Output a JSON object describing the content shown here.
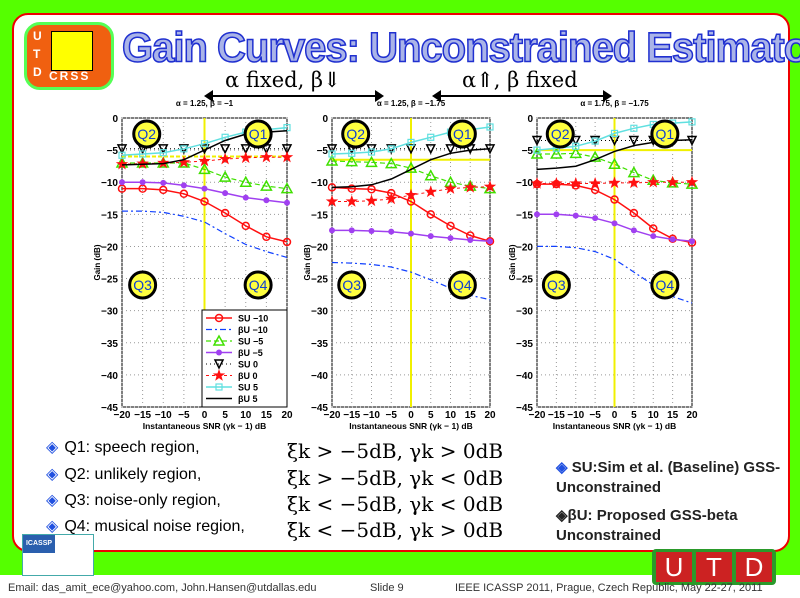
{
  "slide": {
    "title": "Gain Curves: Unconstrained Estimator",
    "logo_text": [
      "U",
      "T",
      "D",
      "CRSS"
    ],
    "header_left": "α fixed, β⇓",
    "header_right": "α⇑, β fixed",
    "bullets": [
      "Q1: speech region,",
      "Q2: unlikely region,",
      "Q3: noise-only region,",
      "Q4: musical noise region,"
    ],
    "equations": [
      "ξk > −5dB, γk > 0dB",
      "ξk > −5dB, γk < 0dB",
      "ξk < −5dB, γk < 0dB",
      "ξk < −5dB, γk > 0dB"
    ],
    "notes": [
      "SU:Sim et al. (Baseline) GSS-Unconstrained",
      "βU: Proposed GSS-beta Unconstrained"
    ],
    "icassp_text": "ICASSP",
    "utd_text": [
      "U",
      "T",
      "D"
    ],
    "footer": {
      "email": "Email: das_amit_ece@yahoo.com, John.Hansen@utdallas.edu",
      "slide": "Slide 9",
      "conf": "IEEE ICASSP 2011, Prague, Czech Republic, May 22-27, 2011"
    }
  },
  "colors": {
    "SU -10": "#ff1010",
    "βU -10": "#1040ff",
    "SU -5": "#40e000",
    "βU -5": "#a040f0",
    "SU 0": "#000000",
    "βU 0": "#ff1010",
    "SU 5": "#60e0e0",
    "βU 5": "#000000",
    "quadrant": "#ffff40",
    "guide": "#f0f000"
  },
  "chart_data": [
    {
      "type": "line",
      "title": "α = 1.25, β = −1",
      "xlabel": "Instantaneous SNR (γk − 1) dB",
      "ylabel": "Gain (dB)",
      "xlim": [
        -20,
        20
      ],
      "ylim": [
        -45,
        0
      ],
      "grid": true,
      "legend": "bottom-right",
      "guide_y": -6,
      "x": [
        -20,
        -15,
        -10,
        -5,
        0,
        5,
        10,
        15,
        20
      ],
      "xticks": [
        -20,
        -15,
        -10,
        -5,
        0,
        5,
        10,
        15,
        20
      ],
      "yticks": [
        0,
        -5,
        -10,
        -15,
        -20,
        -25,
        -30,
        -35,
        -40,
        -45
      ],
      "series": [
        {
          "name": "SU −10",
          "values": [
            -11,
            -11,
            -11.2,
            -11.8,
            -13,
            -14.8,
            -16.8,
            -18.5,
            -19.3
          ]
        },
        {
          "name": "βU −10",
          "values": [
            -14.5,
            -14.5,
            -14.7,
            -15.3,
            -16.2,
            -18,
            -19.7,
            -20.8,
            -21.7
          ]
        },
        {
          "name": "SU −5",
          "values": [
            -7,
            -7,
            -7,
            -7,
            -8,
            -9.2,
            -10,
            -10.6,
            -11
          ]
        },
        {
          "name": "βU −5",
          "values": [
            -10,
            -10,
            -10.1,
            -10.5,
            -11,
            -11.7,
            -12.4,
            -12.8,
            -13.2
          ]
        },
        {
          "name": "SU 0",
          "values": [
            -4.8,
            -4.8,
            -4.8,
            -4.8,
            -4.8,
            -4.8,
            -4.8,
            -4.8,
            -4.8
          ]
        },
        {
          "name": "βU 0",
          "values": [
            -7.2,
            -7.1,
            -7,
            -6.9,
            -6.7,
            -6.4,
            -6.2,
            -6.1,
            -6.1
          ]
        },
        {
          "name": "SU 5",
          "values": [
            -5.8,
            -5.6,
            -5.4,
            -4.8,
            -4,
            -3,
            -2.2,
            -1.8,
            -1.5
          ]
        },
        {
          "name": "βU 5",
          "values": [
            -7.3,
            -7.2,
            -7.1,
            -6.5,
            -5,
            -3.5,
            -2.5,
            -2.2,
            -2
          ]
        }
      ]
    },
    {
      "type": "line",
      "title": "α = 1.25, β = −1.75",
      "xlabel": "Instantaneous SNR (γk − 1) dB",
      "ylabel": "Gain (dB)",
      "xlim": [
        -20,
        20
      ],
      "ylim": [
        -45,
        0
      ],
      "grid": true,
      "guide_y": -6.5,
      "x": [
        -20,
        -15,
        -10,
        -5,
        0,
        5,
        10,
        15,
        20
      ],
      "xticks": [
        -20,
        -15,
        -10,
        -5,
        0,
        5,
        10,
        15,
        20
      ],
      "yticks": [
        0,
        -5,
        -10,
        -15,
        -20,
        -25,
        -30,
        -35,
        -40,
        -45
      ],
      "series": [
        {
          "name": "SU −10",
          "values": [
            -10.8,
            -11,
            -11.1,
            -11.7,
            -13,
            -15,
            -16.8,
            -18.3,
            -19.2
          ]
        },
        {
          "name": "βU −10",
          "values": [
            -22.5,
            -22.6,
            -22.8,
            -23.2,
            -24,
            -25.2,
            -26.5,
            -27.6,
            -28.3
          ]
        },
        {
          "name": "SU −5",
          "values": [
            -6.7,
            -6.8,
            -6.9,
            -7.1,
            -7.8,
            -9,
            -10,
            -10.6,
            -11
          ]
        },
        {
          "name": "βU −5",
          "values": [
            -17.5,
            -17.5,
            -17.6,
            -17.7,
            -18,
            -18.4,
            -18.7,
            -19,
            -19.2
          ]
        },
        {
          "name": "SU 0",
          "values": [
            -4.8,
            -4.8,
            -4.8,
            -4.8,
            -4.8,
            -4.8,
            -4.8,
            -4.8,
            -4.8
          ]
        },
        {
          "name": "βU 0",
          "values": [
            -13,
            -13,
            -12.9,
            -12.6,
            -12,
            -11.5,
            -11,
            -10.8,
            -10.7
          ]
        },
        {
          "name": "SU 5",
          "values": [
            -5.6,
            -5.5,
            -5.3,
            -4.8,
            -3.8,
            -3,
            -2.2,
            -1.8,
            -1.4
          ]
        },
        {
          "name": "βU 5",
          "values": [
            -10.8,
            -10.7,
            -10.4,
            -9.5,
            -8,
            -6.5,
            -5.5,
            -5,
            -4.8
          ]
        }
      ]
    },
    {
      "type": "line",
      "title": "α = 1.75, β = −1.75",
      "xlabel": "Instantaneous SNR (γk − 1) dB",
      "ylabel": "Gain (dB)",
      "xlim": [
        -20,
        20
      ],
      "ylim": [
        -45,
        0
      ],
      "grid": true,
      "guide_y": -5,
      "x": [
        -20,
        -15,
        -10,
        -5,
        0,
        5,
        10,
        15,
        20
      ],
      "xticks": [
        -20,
        -15,
        -10,
        -5,
        0,
        5,
        10,
        15,
        20
      ],
      "yticks": [
        0,
        -5,
        -10,
        -15,
        -20,
        -25,
        -30,
        -35,
        -40,
        -45
      ],
      "series": [
        {
          "name": "SU −10",
          "values": [
            -10.3,
            -10.3,
            -10.5,
            -11.2,
            -12.7,
            -14.8,
            -17.2,
            -18.8,
            -19.4
          ]
        },
        {
          "name": "βU −10",
          "values": [
            -20,
            -20,
            -20.2,
            -20.8,
            -22,
            -24,
            -26,
            -27.8,
            -28.8
          ]
        },
        {
          "name": "SU −5",
          "values": [
            -5.6,
            -5.6,
            -5.5,
            -6.1,
            -7.2,
            -8.5,
            -9.7,
            -10.1,
            -10.3
          ]
        },
        {
          "name": "βU −5",
          "values": [
            -15,
            -15,
            -15.2,
            -15.6,
            -16.4,
            -17.5,
            -18.4,
            -18.9,
            -19.2
          ]
        },
        {
          "name": "SU 0",
          "values": [
            -3.5,
            -3.5,
            -3.5,
            -3.5,
            -3.5,
            -3.5,
            -3.5,
            -3.5,
            -3.5
          ]
        },
        {
          "name": "βU 0",
          "values": [
            -10.2,
            -10.2,
            -10.2,
            -10.2,
            -10.1,
            -10.1,
            -10,
            -10,
            -10
          ]
        },
        {
          "name": "SU 5",
          "values": [
            -5,
            -4.7,
            -4.4,
            -3.6,
            -2.4,
            -1.6,
            -1,
            -0.8,
            -0.6
          ]
        },
        {
          "name": "βU 5",
          "values": [
            -8,
            -7.8,
            -7.5,
            -6.5,
            -5.2,
            -4.3,
            -3.8,
            -3.5,
            -3.4
          ]
        }
      ]
    }
  ],
  "quadrants": [
    "Q1",
    "Q2",
    "Q3",
    "Q4"
  ]
}
